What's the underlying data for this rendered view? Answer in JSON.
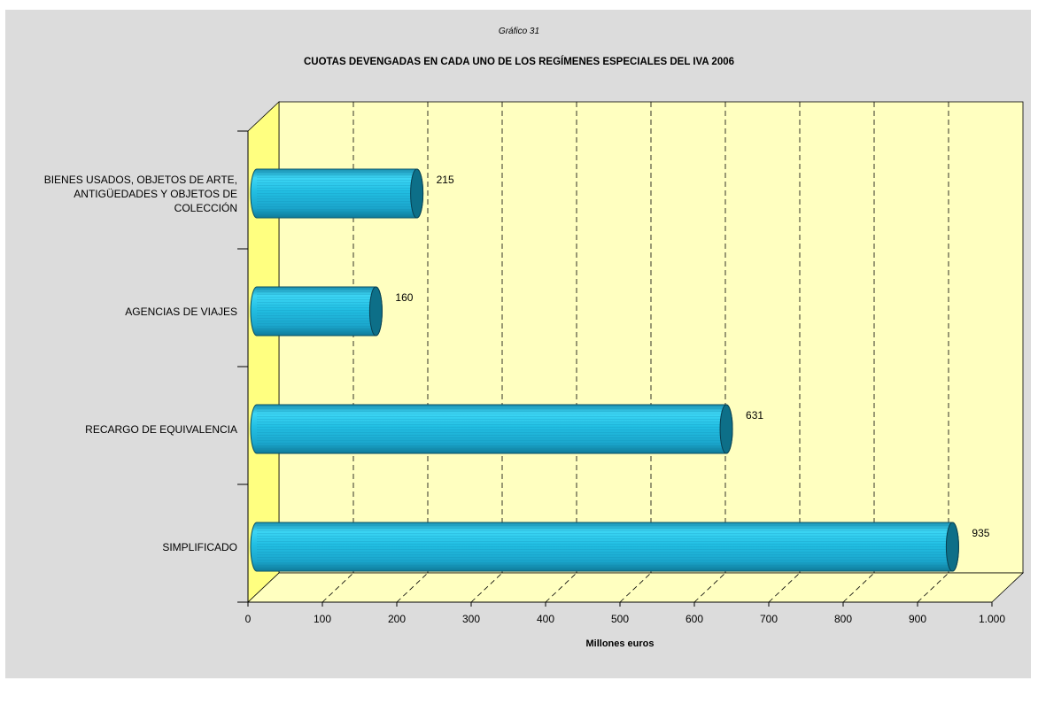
{
  "subtitle": "Gráfico 31",
  "title": "CUOTAS DEVENGADAS EN CADA UNO DE LOS REGÍMENES ESPECIALES DEL IVA 2006",
  "chart_data": {
    "type": "bar",
    "orientation": "horizontal",
    "style": "3d-cylinder",
    "categories": [
      "BIENES USADOS, OBJETOS DE ARTE, ANTIGÜEDADES Y OBJETOS DE COLECCIÓN",
      "AGENCIAS DE VIAJES",
      "RECARGO DE EQUIVALENCIA",
      "SIMPLIFICADO"
    ],
    "category_lines": [
      [
        "BIENES USADOS, OBJETOS DE ARTE,",
        "ANTIGÜEDADES Y OBJETOS DE",
        "COLECCIÓN"
      ],
      [
        "AGENCIAS DE VIAJES"
      ],
      [
        "RECARGO DE EQUIVALENCIA"
      ],
      [
        "SIMPLIFICADO"
      ]
    ],
    "values": [
      215,
      160,
      631,
      935
    ],
    "data_labels": [
      "215",
      "160",
      "631",
      "935"
    ],
    "xlabel": "Millones euros",
    "ylabel": "",
    "xlim": [
      0,
      1000
    ],
    "xticks": [
      0,
      100,
      200,
      300,
      400,
      500,
      600,
      700,
      800,
      900,
      1000
    ],
    "xtick_labels": [
      "0",
      "100",
      "200",
      "300",
      "400",
      "500",
      "600",
      "700",
      "800",
      "900",
      "1.000"
    ],
    "grid": "dashed vertical",
    "legend": "none",
    "colors": {
      "panel": "#dcdcdc",
      "plot_back": "#ffffc0",
      "plot_side": "#ffff80",
      "bar_light": "#33ccf0",
      "bar_dark": "#1798b8",
      "bar_cap": "#0d6f88"
    }
  }
}
